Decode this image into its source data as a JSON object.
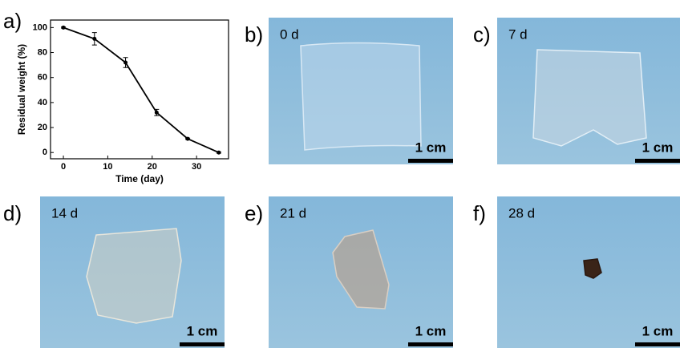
{
  "chart_data": {
    "type": "line",
    "panel_label": "a)",
    "xlabel": "Time (day)",
    "ylabel": "Residual weight (%)",
    "x": [
      0,
      7,
      14,
      21,
      28,
      35
    ],
    "values": [
      100,
      91,
      72,
      32,
      11,
      0
    ],
    "errors": [
      0.5,
      5,
      4,
      2.5,
      0.5,
      0.5
    ],
    "color": "#000000",
    "xlim": [
      -2.9,
      37.2
    ],
    "ylim": [
      -5,
      106
    ],
    "xticks": [
      0,
      10,
      20,
      30
    ],
    "yticks": [
      0,
      20,
      40,
      60,
      80,
      100
    ]
  },
  "panels": [
    {
      "label": "b)",
      "day": "0 d",
      "scale": "1 cm"
    },
    {
      "label": "c)",
      "day": "7 d",
      "scale": "1 cm"
    },
    {
      "label": "d)",
      "day": "14 d",
      "scale": "1 cm"
    },
    {
      "label": "e)",
      "day": "21 d",
      "scale": "1 cm"
    },
    {
      "label": "f)",
      "day": "28 d",
      "scale": "1 cm"
    }
  ]
}
